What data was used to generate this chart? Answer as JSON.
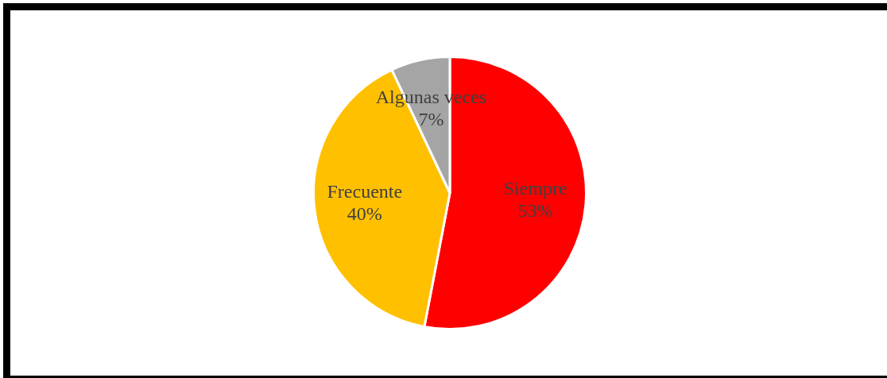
{
  "chart_data": {
    "type": "pie",
    "categories": [
      "Siempre",
      "Frecuente",
      "Algunas veces"
    ],
    "values": [
      53,
      40,
      7
    ],
    "colors": [
      "#ff0000",
      "#ffc000",
      "#a5a5a5"
    ],
    "value_labels": [
      "53%",
      "40%",
      "7%"
    ],
    "legend": false
  }
}
